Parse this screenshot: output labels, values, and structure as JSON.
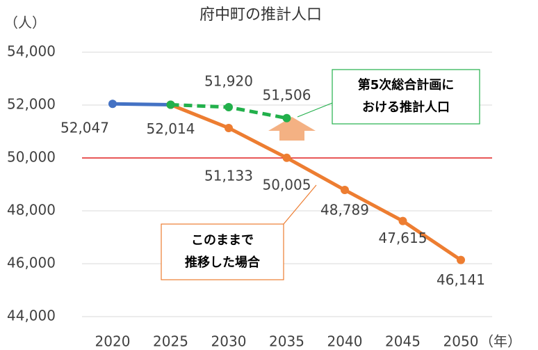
{
  "chart_data": {
    "type": "line",
    "title": "府中町の推計人口",
    "y_label": "（人）",
    "x_label": "（年）",
    "categories": [
      "2020",
      "2025",
      "2030",
      "2035",
      "2040",
      "2045",
      "2050"
    ],
    "ylim": [
      44000,
      54000
    ],
    "yticks": [
      {
        "value": 44000,
        "label": "44,000"
      },
      {
        "value": 46000,
        "label": "46,000"
      },
      {
        "value": 48000,
        "label": "48,000"
      },
      {
        "value": 50000,
        "label": "50,000"
      },
      {
        "value": 52000,
        "label": "52,000"
      },
      {
        "value": 54000,
        "label": "54,000"
      }
    ],
    "grid": true,
    "reference_line": {
      "value": 50000,
      "color": "#e02020"
    },
    "series": [
      {
        "color": "#4472c4",
        "dashed": false,
        "values": [
          52047,
          52014,
          null,
          null,
          null,
          null,
          null
        ],
        "value_labels": [
          "52,047",
          "52,014",
          null,
          null,
          null,
          null,
          null
        ]
      },
      {
        "color": "#ed7d31",
        "dashed": false,
        "values": [
          null,
          52014,
          51133,
          50005,
          48789,
          47615,
          46141
        ],
        "value_labels": [
          null,
          null,
          "51,133",
          "50,005",
          "48,789",
          "47,615",
          "46,141"
        ]
      },
      {
        "color": "#22b04b",
        "dashed": true,
        "values": [
          null,
          52014,
          51920,
          51506,
          null,
          null,
          null
        ],
        "value_labels": [
          null,
          null,
          "51,920",
          "51,506",
          null,
          null,
          null
        ]
      }
    ],
    "annotations": [
      {
        "lines": [
          "第5次総合計画に",
          "おける推計人口"
        ],
        "color": "#22b04b"
      },
      {
        "lines": [
          "このままで",
          "推移した場合"
        ],
        "color": "#ed7d31"
      }
    ]
  }
}
